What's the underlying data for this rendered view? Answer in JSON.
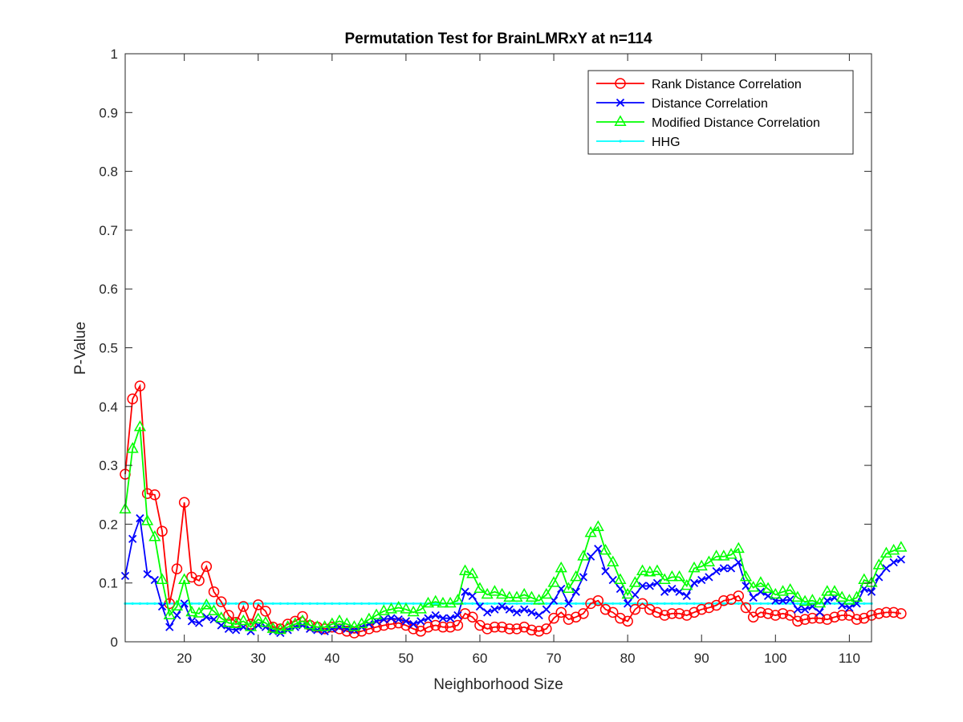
{
  "chart_data": {
    "type": "line",
    "title": "Permutation Test for BrainLMRxY at n=114",
    "xlabel": "Neighborhood Size",
    "ylabel": "P-Value",
    "xlim": [
      12,
      113
    ],
    "ylim": [
      0,
      1
    ],
    "xticks": [
      20,
      30,
      40,
      50,
      60,
      70,
      80,
      90,
      100,
      110
    ],
    "yticks": [
      0,
      0.1,
      0.2,
      0.3,
      0.4,
      0.5,
      0.6,
      0.7,
      0.8,
      0.9,
      1
    ],
    "ytick_labels": [
      "0",
      "0.1",
      "0.2",
      "0.3",
      "0.4",
      "0.5",
      "0.6",
      "0.7",
      "0.8",
      "0.9",
      "1"
    ],
    "grid": false,
    "legend_position": "top-right",
    "x_start": 12,
    "x_end": 113,
    "series": [
      {
        "name": "Rank Distance Correlation",
        "color": "#ff0000",
        "marker": "circle",
        "values": [
          0.285,
          0.413,
          0.435,
          0.252,
          0.25,
          0.188,
          0.065,
          0.124,
          0.237,
          0.11,
          0.104,
          0.128,
          0.085,
          0.068,
          0.045,
          0.033,
          0.06,
          0.03,
          0.063,
          0.052,
          0.025,
          0.022,
          0.03,
          0.035,
          0.043,
          0.028,
          0.025,
          0.022,
          0.025,
          0.022,
          0.018,
          0.015,
          0.018,
          0.022,
          0.025,
          0.028,
          0.03,
          0.032,
          0.028,
          0.022,
          0.018,
          0.025,
          0.028,
          0.025,
          0.025,
          0.028,
          0.048,
          0.042,
          0.028,
          0.022,
          0.025,
          0.025,
          0.022,
          0.022,
          0.025,
          0.02,
          0.018,
          0.022,
          0.04,
          0.05,
          0.038,
          0.042,
          0.048,
          0.065,
          0.07,
          0.055,
          0.05,
          0.04,
          0.035,
          0.055,
          0.065,
          0.055,
          0.05,
          0.045,
          0.048,
          0.048,
          0.045,
          0.05,
          0.055,
          0.058,
          0.062,
          0.07,
          0.072,
          0.078,
          0.058,
          0.042,
          0.05,
          0.048,
          0.045,
          0.048,
          0.045,
          0.035,
          0.038,
          0.04,
          0.04,
          0.038,
          0.042,
          0.045,
          0.045,
          0.038,
          0.04,
          0.045,
          0.048,
          0.05,
          0.05,
          0.048
        ]
      },
      {
        "name": "Distance Correlation",
        "color": "#0000ff",
        "marker": "x",
        "values": [
          0.112,
          0.175,
          0.21,
          0.115,
          0.105,
          0.06,
          0.025,
          0.045,
          0.065,
          0.035,
          0.032,
          0.042,
          0.038,
          0.028,
          0.022,
          0.02,
          0.025,
          0.018,
          0.028,
          0.025,
          0.018,
          0.015,
          0.02,
          0.025,
          0.028,
          0.022,
          0.02,
          0.018,
          0.022,
          0.025,
          0.022,
          0.02,
          0.025,
          0.03,
          0.035,
          0.038,
          0.04,
          0.038,
          0.035,
          0.03,
          0.035,
          0.04,
          0.045,
          0.04,
          0.04,
          0.045,
          0.085,
          0.078,
          0.06,
          0.05,
          0.055,
          0.06,
          0.055,
          0.05,
          0.055,
          0.05,
          0.045,
          0.055,
          0.07,
          0.09,
          0.065,
          0.085,
          0.11,
          0.145,
          0.158,
          0.12,
          0.105,
          0.09,
          0.065,
          0.08,
          0.095,
          0.095,
          0.1,
          0.085,
          0.09,
          0.085,
          0.078,
          0.1,
          0.105,
          0.11,
          0.12,
          0.125,
          0.125,
          0.135,
          0.095,
          0.075,
          0.085,
          0.078,
          0.07,
          0.07,
          0.072,
          0.055,
          0.055,
          0.06,
          0.05,
          0.07,
          0.075,
          0.062,
          0.058,
          0.065,
          0.09,
          0.085,
          0.11,
          0.125,
          0.135,
          0.14
        ]
      },
      {
        "name": "Modified Distance Correlation",
        "color": "#00ff00",
        "marker": "triangle",
        "values": [
          0.225,
          0.328,
          0.365,
          0.205,
          0.178,
          0.105,
          0.045,
          0.06,
          0.105,
          0.05,
          0.048,
          0.062,
          0.052,
          0.04,
          0.032,
          0.03,
          0.035,
          0.025,
          0.038,
          0.032,
          0.022,
          0.02,
          0.025,
          0.03,
          0.035,
          0.028,
          0.025,
          0.025,
          0.03,
          0.035,
          0.03,
          0.025,
          0.03,
          0.038,
          0.045,
          0.052,
          0.055,
          0.058,
          0.055,
          0.05,
          0.055,
          0.065,
          0.068,
          0.065,
          0.065,
          0.07,
          0.12,
          0.115,
          0.09,
          0.08,
          0.085,
          0.08,
          0.075,
          0.075,
          0.08,
          0.075,
          0.07,
          0.08,
          0.1,
          0.125,
          0.09,
          0.11,
          0.145,
          0.185,
          0.195,
          0.155,
          0.135,
          0.105,
          0.08,
          0.1,
          0.12,
          0.118,
          0.12,
          0.105,
          0.11,
          0.11,
          0.095,
          0.125,
          0.128,
          0.135,
          0.145,
          0.145,
          0.148,
          0.158,
          0.11,
          0.092,
          0.1,
          0.09,
          0.08,
          0.085,
          0.088,
          0.075,
          0.068,
          0.07,
          0.065,
          0.085,
          0.085,
          0.075,
          0.07,
          0.075,
          0.105,
          0.1,
          0.13,
          0.15,
          0.155,
          0.16
        ]
      },
      {
        "name": "HHG",
        "color": "#00ffff",
        "marker": "dot",
        "constant": 0.065
      }
    ]
  }
}
